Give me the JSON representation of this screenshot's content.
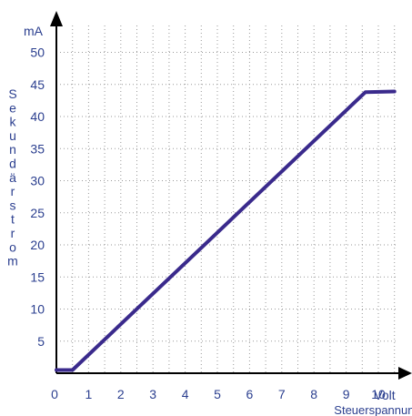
{
  "chart_data": {
    "type": "line",
    "ylabel": "Sekundärstrom",
    "y_unit": "mA",
    "x_unit": "Volt",
    "xlabel": "Steuerspannung",
    "xlim": [
      0,
      10.5
    ],
    "ylim": [
      0,
      53
    ],
    "x_ticks": [
      "0",
      "1",
      "2",
      "3",
      "4",
      "5",
      "6",
      "7",
      "8",
      "9",
      "10"
    ],
    "y_ticks": [
      "5",
      "10",
      "15",
      "20",
      "25",
      "30",
      "35",
      "40",
      "45",
      "50"
    ],
    "grid": true,
    "colors": {
      "line": "#3a2a8c",
      "text": "#2b3f8f",
      "grid": "#9a9a9a",
      "axis": "#000000"
    },
    "series": [
      {
        "x": [
          0,
          0.5,
          9.6,
          10.5
        ],
        "y": [
          0.5,
          0.5,
          43.8,
          43.9
        ]
      }
    ]
  }
}
